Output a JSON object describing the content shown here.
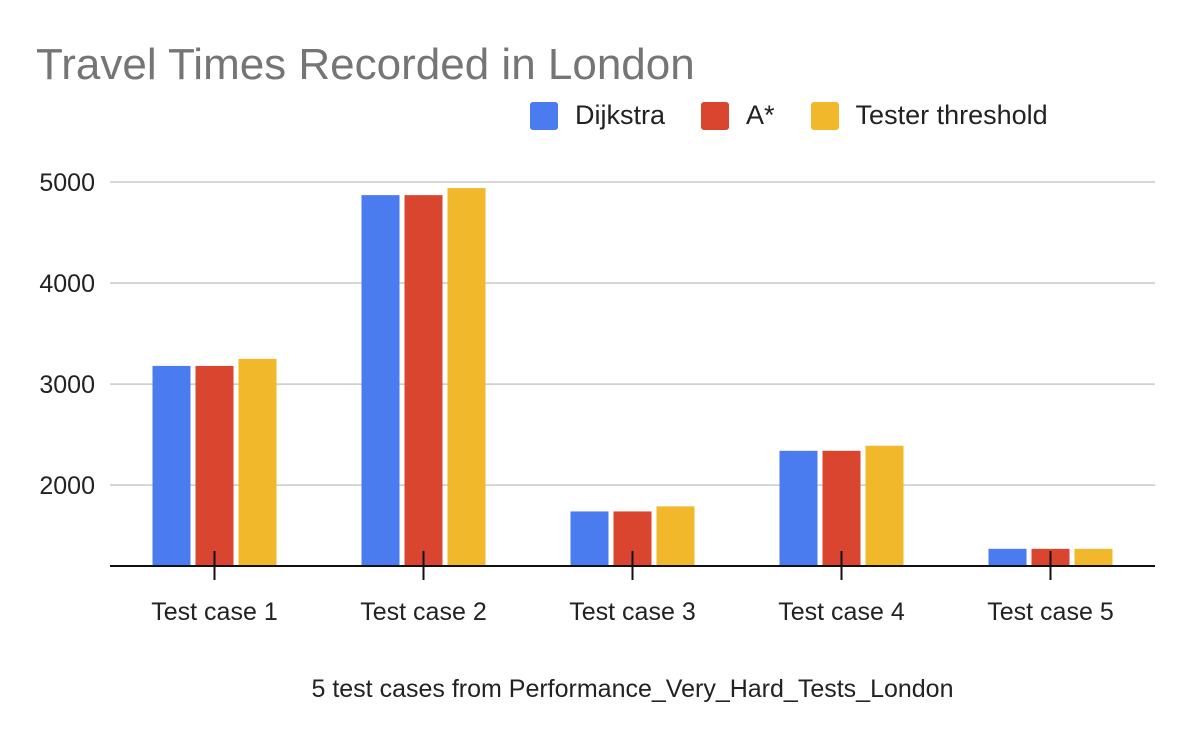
{
  "chart_data": {
    "type": "bar",
    "title": "Travel Times Recorded in London",
    "xlabel": "5 test cases from Performance_Very_Hard_Tests_London",
    "ylabel": "",
    "categories": [
      "Test case 1",
      "Test case 2",
      "Test case 3",
      "Test case 4",
      "Test case 5"
    ],
    "series": [
      {
        "name": "Dijkstra",
        "color": "#4a7bef",
        "values": [
          3180,
          4870,
          1740,
          2340,
          1370
        ]
      },
      {
        "name": "A*",
        "color": "#d9452f",
        "values": [
          3180,
          4870,
          1740,
          2340,
          1370
        ]
      },
      {
        "name": "Tester threshold",
        "color": "#f2b82b",
        "values": [
          3250,
          4940,
          1790,
          2390,
          1370
        ]
      }
    ],
    "yticks": [
      2000,
      3000,
      4000,
      5000
    ],
    "ylim": [
      1200,
      5000
    ],
    "grid": true,
    "legend_position": "top-right"
  }
}
